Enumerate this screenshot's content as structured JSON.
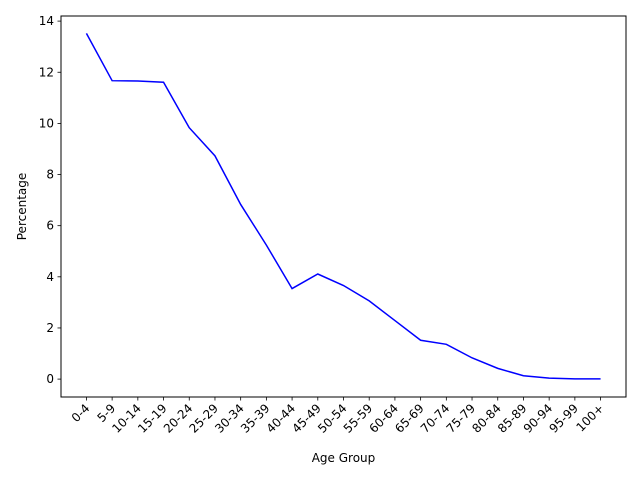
{
  "chart_data": {
    "type": "line",
    "title": "",
    "xlabel": "Age Group",
    "ylabel": "Percentage",
    "categories": [
      "0-4",
      "5-9",
      "10-14",
      "15-19",
      "20-24",
      "25-29",
      "30-34",
      "35-39",
      "40-44",
      "45-49",
      "50-54",
      "55-59",
      "60-64",
      "65-69",
      "70-74",
      "75-79",
      "80-84",
      "85-89",
      "90-94",
      "95-99",
      "100+"
    ],
    "series": [
      {
        "values": [
          13.52,
          11.67,
          11.66,
          11.61,
          9.83,
          8.73,
          6.83,
          5.24,
          3.54,
          4.11,
          3.66,
          3.06,
          2.29,
          1.52,
          1.36,
          0.83,
          0.42,
          0.13,
          0.04,
          0.01,
          0.01
        ],
        "color": "#0000ff"
      }
    ],
    "ylim": [
      -0.7,
      14.2
    ],
    "yticks": [
      0,
      2,
      4,
      6,
      8,
      10,
      12,
      14
    ],
    "ytick_labels": [
      "0",
      "2",
      "4",
      "6",
      "8",
      "10",
      "12",
      "14"
    ],
    "grid": false,
    "legend": "none"
  }
}
